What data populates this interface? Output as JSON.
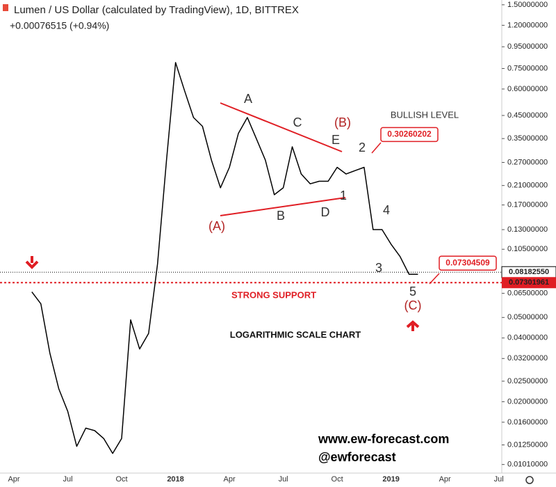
{
  "chart_data": {
    "type": "line",
    "title": "Lumen / US Dollar (calculated by TradingView), 1D, BITTREX",
    "change": "+0.00076515 (+0.94%)",
    "log_scale": true,
    "color": "#000000",
    "categories": [
      "Apr",
      null,
      null,
      null,
      null,
      null,
      "Jul",
      null,
      null,
      null,
      null,
      null,
      "Oct",
      null,
      null,
      null,
      null,
      null,
      "2018",
      null,
      null,
      null,
      null,
      null,
      "Apr",
      null,
      null,
      null,
      null,
      null,
      "Jul",
      null,
      null,
      null,
      null,
      null,
      "Oct",
      null,
      null,
      null,
      null,
      null,
      "2019",
      null,
      null,
      null,
      null,
      null,
      "Apr",
      null,
      null,
      null,
      null,
      null,
      "Jul",
      null
    ],
    "values": [
      null,
      null,
      0.066,
      0.058,
      0.034,
      0.023,
      0.018,
      0.0123,
      0.015,
      0.0146,
      0.0134,
      0.0114,
      0.0134,
      0.0487,
      0.0355,
      0.042,
      0.0896,
      0.277,
      0.8,
      0.59,
      0.44,
      0.4,
      0.277,
      0.205,
      0.256,
      0.37,
      0.44,
      0.35,
      0.277,
      0.19,
      0.205,
      0.32,
      0.238,
      0.214,
      0.22,
      0.22,
      0.256,
      0.238,
      0.247,
      0.256,
      0.13,
      0.13,
      0.111,
      0.097,
      0.08,
      0.08,
      null,
      null,
      null,
      null,
      null,
      null,
      null,
      null,
      null,
      null
    ],
    "ylim": [
      0.0092,
      1.58
    ],
    "yticks": [
      {
        "value": 1.5,
        "label": "1.50000000"
      },
      {
        "value": 1.2,
        "label": "1.20000000"
      },
      {
        "value": 0.95,
        "label": "0.95000000"
      },
      {
        "value": 0.75,
        "label": "0.75000000"
      },
      {
        "value": 0.6,
        "label": "0.60000000"
      },
      {
        "value": 0.45,
        "label": "0.45000000"
      },
      {
        "value": 0.35,
        "label": "0.35000000"
      },
      {
        "value": 0.27,
        "label": "0.27000000"
      },
      {
        "value": 0.21,
        "label": "0.21000000"
      },
      {
        "value": 0.17,
        "label": "0.17000000"
      },
      {
        "value": 0.13,
        "label": "0.13000000"
      },
      {
        "value": 0.105,
        "label": "0.10500000"
      },
      {
        "value": 0.065,
        "label": "0.06500000"
      },
      {
        "value": 0.05,
        "label": "0.05000000"
      },
      {
        "value": 0.04,
        "label": "0.04000000"
      },
      {
        "value": 0.032,
        "label": "0.03200000"
      },
      {
        "value": 0.025,
        "label": "0.02500000"
      },
      {
        "value": 0.02,
        "label": "0.02000000"
      },
      {
        "value": 0.016,
        "label": "0.01600000"
      },
      {
        "value": 0.0125,
        "label": "0.01250000"
      },
      {
        "value": 0.0101,
        "label": "0.01010000"
      }
    ],
    "current_price": {
      "value": 0.0818255,
      "label": "0.08182550"
    },
    "support": {
      "value": 0.07301961,
      "label": "0.07301961"
    },
    "callouts": [
      {
        "value": 0.30260202,
        "label": "0.30260202"
      },
      {
        "value": 0.07304509,
        "label": "0.07304509"
      }
    ],
    "annotations": [
      "A",
      "C",
      "(B)",
      "E",
      "2",
      "BULLISH LEVEL",
      "1",
      "D",
      "B",
      "(A)",
      "4",
      "3",
      "5",
      "(C)",
      "STRONG SUPPORT",
      "LOGARITHMIC SCALE CHART"
    ],
    "watermark": [
      "www.ew-forecast.com",
      "@ewforecast"
    ]
  }
}
